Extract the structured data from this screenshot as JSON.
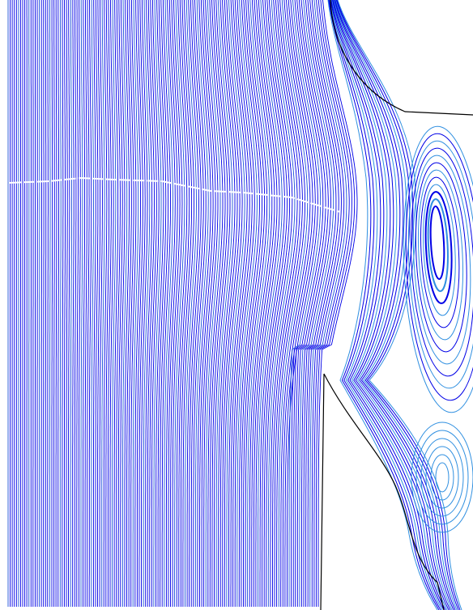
{
  "figure": {
    "description_kind": "streamline-plot",
    "colors": {
      "background": "#ffffff",
      "wall": "#000000",
      "streamline_dark": "#0000e6",
      "streamline_mid": "#1a4fd8",
      "streamline_light": "#2f8fe0",
      "centerline_gap": "#ffffff"
    },
    "regions": [
      "main-channel",
      "channel-wall",
      "upper-recirculation-vortex",
      "lower-recirculation-vortex",
      "cavity-near-wall-streamlines"
    ]
  }
}
